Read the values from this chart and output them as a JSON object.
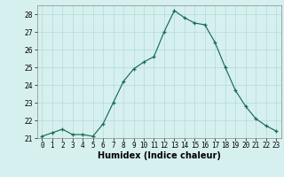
{
  "x": [
    0,
    1,
    2,
    3,
    4,
    5,
    6,
    7,
    8,
    9,
    10,
    11,
    12,
    13,
    14,
    15,
    16,
    17,
    18,
    19,
    20,
    21,
    22,
    23
  ],
  "y": [
    21.1,
    21.3,
    21.5,
    21.2,
    21.2,
    21.1,
    21.8,
    23.0,
    24.2,
    24.9,
    25.3,
    25.6,
    27.0,
    28.2,
    27.8,
    27.5,
    27.4,
    26.4,
    25.0,
    23.7,
    22.8,
    22.1,
    21.7,
    21.4
  ],
  "xlabel": "Humidex (Indice chaleur)",
  "bg_color": "#d6f0ef",
  "grid_color": "#b0dbd8",
  "line_color": "#1a6b5a",
  "ylim": [
    21,
    28.5
  ],
  "yticks": [
    21,
    22,
    23,
    24,
    25,
    26,
    27,
    28
  ],
  "xlim": [
    -0.5,
    23.5
  ],
  "tick_fontsize": 5.5,
  "xlabel_fontsize": 7
}
